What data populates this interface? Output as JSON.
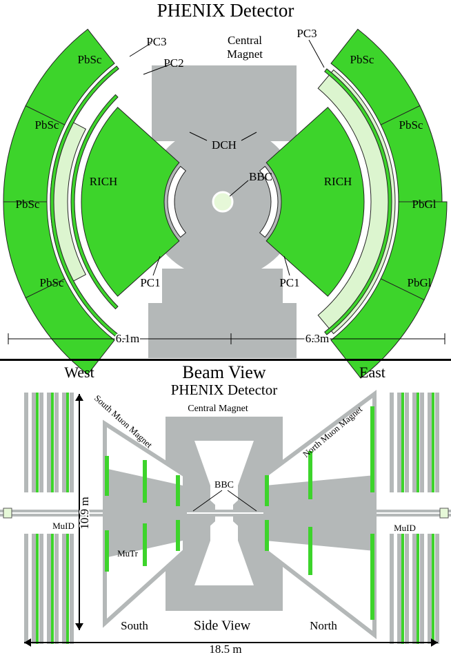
{
  "beam_view": {
    "title": "PHENIX Detector",
    "labels": [
      "Central",
      "Magnet",
      "PC3",
      "PC2",
      "PbSc",
      "PbSc",
      "PbSc",
      "PbSc",
      "RICH",
      "PC1",
      "DCH",
      "BBC",
      "RICH",
      "PC1",
      "PC3",
      "PbSc",
      "PbSc",
      "PbGl",
      "PbGl",
      "6.1m",
      "6.3m",
      "Beam View"
    ]
  },
  "side_view": {
    "title": "PHENIX Detector",
    "labels": [
      "West",
      "East",
      "Central Magnet",
      "South Muon Magnet",
      "North Muon Magnet",
      "BBC",
      "10.9 m",
      "MuID",
      "MuID",
      "MuTr",
      "South",
      "Side View",
      "North",
      "18.5 m"
    ]
  }
}
